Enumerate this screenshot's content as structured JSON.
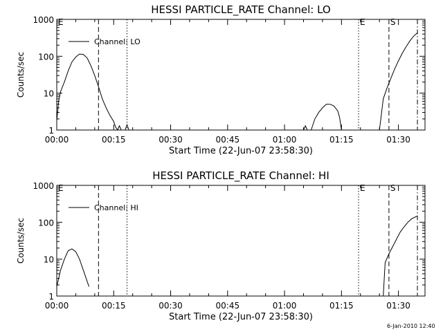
{
  "footer": {
    "timestamp": "6-Jan-2010 12:40"
  },
  "chart_data": [
    {
      "type": "line",
      "title": "HESSI PARTICLE_RATE Channel: LO",
      "xlabel": "Start Time (22-Jun-07 23:58:30)",
      "ylabel": "Counts/sec",
      "yscale": "log",
      "ylim": [
        1,
        1000
      ],
      "xlim_minutes": [
        0,
        97
      ],
      "x_tick_labels": [
        "00:00",
        "00:15",
        "00:30",
        "00:45",
        "01:00",
        "01:15",
        "01:30"
      ],
      "y_tick_labels": [
        "1",
        "10",
        "100",
        "1000"
      ],
      "legend": {
        "label": "Channel: LO",
        "position": "top-left"
      },
      "markers": [
        {
          "label": "E",
          "x_minutes": 0,
          "style": "none"
        },
        {
          "label": "",
          "x_minutes": 11,
          "style": "dashed"
        },
        {
          "label": "",
          "x_minutes": 18.5,
          "style": "dotted"
        },
        {
          "label": "E",
          "x_minutes": 79.5,
          "style": "dotted"
        },
        {
          "label": "S",
          "x_minutes": 87.5,
          "style": "dashed"
        },
        {
          "label": "",
          "x_minutes": 95,
          "style": "dashdot"
        }
      ],
      "series": [
        {
          "segments": [
            [
              [
                0,
                1.8
              ],
              [
                0.5,
                6
              ],
              [
                1,
                11
              ],
              [
                2,
                20
              ],
              [
                3,
                40
              ],
              [
                4,
                70
              ],
              [
                5,
                95
              ],
              [
                6,
                115
              ],
              [
                7,
                112
              ],
              [
                8,
                90
              ],
              [
                9,
                55
              ],
              [
                10,
                30
              ],
              [
                11,
                15
              ],
              [
                12,
                7
              ],
              [
                13,
                4
              ],
              [
                14,
                2.5
              ],
              [
                15,
                1.7
              ],
              [
                15.5,
                1.2
              ],
              [
                16,
                1
              ],
              [
                16.5,
                1.3
              ],
              [
                17,
                1
              ]
            ],
            [
              [
                18,
                1
              ],
              [
                18.5,
                1.4
              ],
              [
                19,
                1
              ]
            ],
            [
              [
                65,
                1
              ],
              [
                65.5,
                1.3
              ],
              [
                66,
                1
              ]
            ],
            [
              [
                67,
                1
              ],
              [
                68,
                2
              ],
              [
                69,
                3
              ],
              [
                70,
                4
              ],
              [
                71,
                5
              ],
              [
                72,
                5
              ],
              [
                73,
                4.5
              ],
              [
                74,
                3.3
              ],
              [
                74.5,
                2.2
              ],
              [
                75,
                1
              ]
            ],
            [
              [
                85,
                1
              ],
              [
                86,
                7
              ],
              [
                87,
                14
              ],
              [
                88,
                25
              ],
              [
                89,
                45
              ],
              [
                90,
                75
              ],
              [
                91,
                120
              ],
              [
                92,
                180
              ],
              [
                93,
                260
              ],
              [
                94,
                350
              ],
              [
                95,
                430
              ]
            ]
          ]
        }
      ]
    },
    {
      "type": "line",
      "title": "HESSI PARTICLE_RATE Channel: HI",
      "xlabel": "Start Time (22-Jun-07 23:58:30)",
      "ylabel": "Counts/sec",
      "yscale": "log",
      "ylim": [
        1,
        1000
      ],
      "xlim_minutes": [
        0,
        97
      ],
      "x_tick_labels": [
        "00:00",
        "00:15",
        "00:30",
        "00:45",
        "01:00",
        "01:15",
        "01:30"
      ],
      "y_tick_labels": [
        "1",
        "10",
        "100",
        "1000"
      ],
      "legend": {
        "label": "Channel: HI",
        "position": "top-left"
      },
      "markers": [
        {
          "label": "E",
          "x_minutes": 0,
          "style": "none"
        },
        {
          "label": "",
          "x_minutes": 11,
          "style": "dashed"
        },
        {
          "label": "",
          "x_minutes": 18.5,
          "style": "dotted"
        },
        {
          "label": "E",
          "x_minutes": 79.5,
          "style": "dotted"
        },
        {
          "label": "S",
          "x_minutes": 87.5,
          "style": "dashed"
        },
        {
          "label": "",
          "x_minutes": 95,
          "style": "dashdot"
        }
      ],
      "series": [
        {
          "segments": [
            [
              [
                0,
                1.8
              ],
              [
                1,
                5
              ],
              [
                2,
                10
              ],
              [
                3,
                17
              ],
              [
                4,
                19
              ],
              [
                5,
                16
              ],
              [
                6,
                10
              ],
              [
                7,
                5
              ],
              [
                8,
                2.5
              ],
              [
                8.5,
                1.8
              ]
            ],
            [
              [
                86,
                1
              ],
              [
                86.5,
                8
              ],
              [
                87.5,
                14
              ],
              [
                88.5,
                22
              ],
              [
                89.5,
                35
              ],
              [
                90.5,
                55
              ],
              [
                91.5,
                75
              ],
              [
                92.5,
                100
              ],
              [
                93.5,
                125
              ],
              [
                94.5,
                140
              ],
              [
                95,
                145
              ]
            ]
          ]
        }
      ]
    }
  ]
}
